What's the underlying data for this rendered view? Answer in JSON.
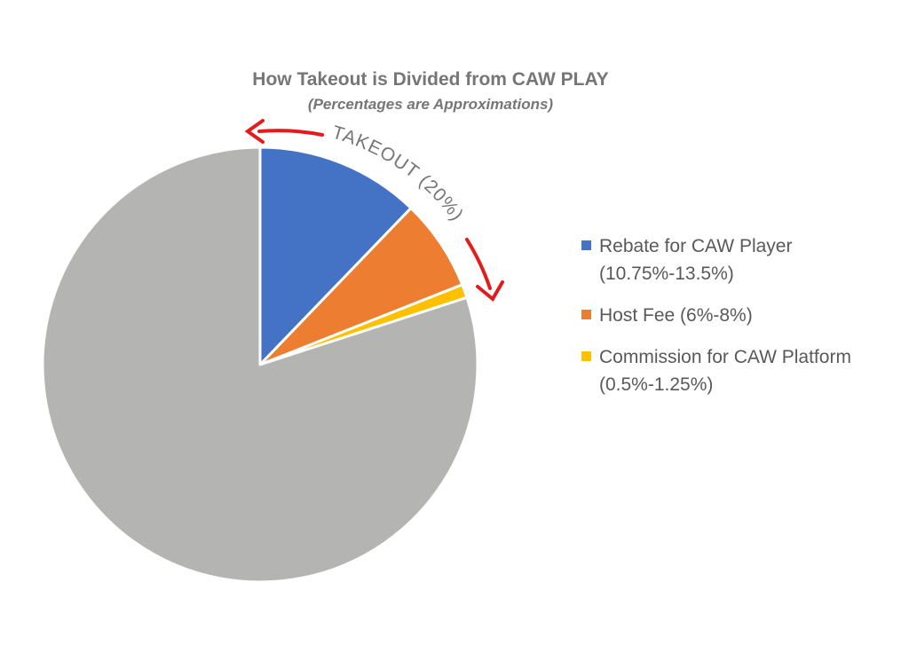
{
  "chart_data": {
    "type": "pie",
    "title": "How Takeout is Divided from CAW PLAY",
    "subtitle": "(Percentages are Approximations)",
    "slices": [
      {
        "label": "Rebate for CAW Player\n(10.75%-13.5%)",
        "value": 12.2,
        "color": "#4472C4"
      },
      {
        "label": "Host Fee (6%-8%)",
        "value": 6.8,
        "color": "#ED7D31"
      },
      {
        "label": "Commission for CAW Platform\n(0.5%-1.25%)",
        "value": 1.0,
        "color": "#FFC000"
      },
      {
        "label": "",
        "value": 80.0,
        "color": "#B4B4B2"
      }
    ],
    "legend": {
      "position": "right",
      "items": [
        {
          "label": "Rebate for CAW Player\n(10.75%-13.5%)",
          "color": "#4472C4"
        },
        {
          "label": "Host Fee (6%-8%)",
          "color": "#ED7D31"
        },
        {
          "label": "Commission for CAW Platform\n(0.5%-1.25%)",
          "color": "#FFC000"
        }
      ]
    },
    "annotation": {
      "text": "TAKEOUT (20%)",
      "arrow_color": "#E31B1B"
    }
  }
}
